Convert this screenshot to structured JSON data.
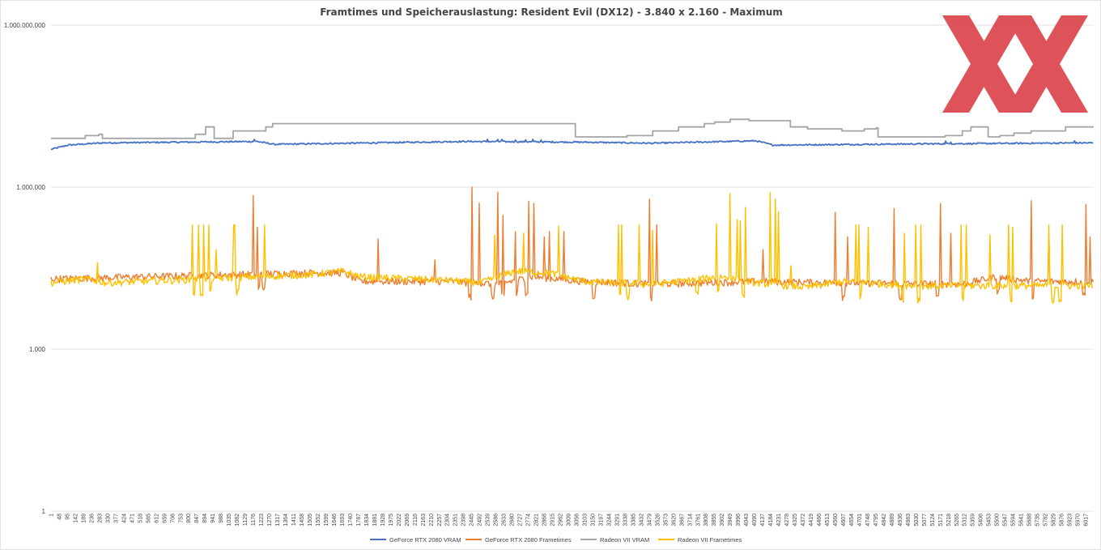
{
  "chart_data": {
    "type": "line",
    "title": "Framtimes und Speicherauslastung: Resident Evil (DX12) - 3.840 x 2.160 - Maximum",
    "xlabel": "",
    "ylabel": "",
    "yscale": "log",
    "ylim": [
      1,
      1000000000
    ],
    "yticks": [
      {
        "value": 1000000000,
        "label": "1.000.000.000"
      },
      {
        "value": 1000000,
        "label": "1.000.000"
      },
      {
        "value": 1000,
        "label": "1.000"
      },
      {
        "value": 1,
        "label": "1"
      }
    ],
    "xlim": [
      1,
      6064
    ],
    "xtick_labels": [
      "1",
      "48",
      "95",
      "142",
      "189",
      "236",
      "283",
      "330",
      "377",
      "424",
      "471",
      "518",
      "565",
      "612",
      "659",
      "706",
      "753",
      "800",
      "847",
      "894",
      "941",
      "988",
      "1035",
      "1082",
      "1129",
      "1176",
      "1223",
      "1270",
      "1317",
      "1364",
      "1411",
      "1458",
      "1505",
      "1552",
      "1599",
      "1646",
      "1693",
      "1740",
      "1787",
      "1834",
      "1881",
      "1928",
      "1975",
      "2022",
      "2069",
      "2116",
      "2163",
      "2210",
      "2257",
      "2304",
      "2351",
      "2398",
      "2445",
      "2492",
      "2539",
      "2586",
      "2633",
      "2680",
      "2727",
      "2774",
      "2821",
      "2868",
      "2915",
      "2962",
      "3009",
      "3056",
      "3103",
      "3150",
      "3197",
      "3244",
      "3291",
      "3338",
      "3385",
      "3432",
      "3479",
      "3526",
      "3573",
      "3620",
      "3667",
      "3714",
      "3761",
      "3808",
      "3855",
      "3902",
      "3949",
      "3996",
      "4043",
      "4090",
      "4137",
      "4184",
      "4231",
      "4278",
      "4325",
      "4372",
      "4419",
      "4466",
      "4513",
      "4560",
      "4607",
      "4654",
      "4701",
      "4748",
      "4795",
      "4842",
      "4889",
      "4936",
      "4983",
      "5030",
      "5077",
      "5124",
      "5171",
      "5218",
      "5265",
      "5312",
      "5359",
      "5406",
      "5453",
      "5500",
      "5547",
      "5594",
      "5641",
      "5688",
      "5735",
      "5782",
      "5829",
      "5876",
      "5923",
      "5970",
      "6017"
    ],
    "grid": true,
    "legend_position": "bottom",
    "series": [
      {
        "name": "GeForce RTX 2080 VRAM",
        "color": "#4472c4",
        "kind": "flat",
        "base": 6500000,
        "noise": 0.03,
        "points": [
          [
            1,
            5000000
          ],
          [
            100,
            6000000
          ],
          [
            300,
            6600000
          ],
          [
            1200,
            7000000
          ],
          [
            1300,
            6200000
          ],
          [
            2400,
            7000000
          ],
          [
            3100,
            6800000
          ],
          [
            3500,
            6500000
          ],
          [
            4100,
            7200000
          ],
          [
            4200,
            6000000
          ],
          [
            5000,
            6300000
          ],
          [
            6064,
            6600000
          ]
        ],
        "spikes": [
          1180,
          2540,
          2600,
          2620,
          2700,
          2760,
          2800,
          2850,
          5200,
          5230,
          5950
        ]
      },
      {
        "name": "GeForce RTX 2080 Frametimes",
        "color": "#ed7d31",
        "kind": "noisy",
        "base": 18000,
        "noise": 0.15,
        "segments": [
          [
            1,
            20000
          ],
          [
            1500,
            26000
          ],
          [
            1700,
            26000
          ],
          [
            1800,
            18000
          ],
          [
            2300,
            18000
          ],
          [
            2600,
            16000
          ],
          [
            2800,
            22000
          ],
          [
            3100,
            18000
          ],
          [
            3500,
            16000
          ],
          [
            4100,
            18000
          ],
          [
            4600,
            17000
          ],
          [
            5300,
            16000
          ],
          [
            5500,
            22000
          ],
          [
            5700,
            18000
          ],
          [
            6064,
            18000
          ]
        ],
        "spikes": [
          [
            1176,
            700000
          ],
          [
            1200,
            180000
          ],
          [
            1900,
            110000
          ],
          [
            2230,
            45000
          ],
          [
            2450,
            1000000
          ],
          [
            2490,
            500000
          ],
          [
            2600,
            800000
          ],
          [
            2630,
            300000
          ],
          [
            2700,
            150000
          ],
          [
            2780,
            550000
          ],
          [
            2810,
            500000
          ],
          [
            2870,
            120000
          ],
          [
            2900,
            150000
          ],
          [
            2980,
            150000
          ],
          [
            3480,
            600000
          ],
          [
            3520,
            200000
          ],
          [
            4140,
            70000
          ],
          [
            4560,
            340000
          ],
          [
            4630,
            120000
          ],
          [
            4900,
            400000
          ],
          [
            5170,
            500000
          ],
          [
            5230,
            140000
          ],
          [
            5700,
            560000
          ],
          [
            5800,
            140000
          ],
          [
            6020,
            480000
          ],
          [
            6040,
            120000
          ]
        ],
        "dips": [
          1200,
          1230,
          2430,
          2560,
          2620,
          2700,
          2760,
          3150,
          3480,
          4600,
          4930,
          5150,
          5500,
          5700,
          6000
        ]
      },
      {
        "name": "Radeon VII VRAM",
        "color": "#a5a5a5",
        "kind": "steps",
        "points": [
          [
            1,
            8000000
          ],
          [
            200,
            9000000
          ],
          [
            280,
            9500000
          ],
          [
            300,
            8000000
          ],
          [
            830,
            8000000
          ],
          [
            840,
            9500000
          ],
          [
            900,
            13000000
          ],
          [
            940,
            13000000
          ],
          [
            950,
            8000000
          ],
          [
            1020,
            8000000
          ],
          [
            1060,
            11000000
          ],
          [
            1230,
            11000000
          ],
          [
            1250,
            13000000
          ],
          [
            1290,
            15000000
          ],
          [
            2060,
            15000000
          ],
          [
            3040,
            15000000
          ],
          [
            3050,
            8500000
          ],
          [
            3300,
            8500000
          ],
          [
            3350,
            9000000
          ],
          [
            3500,
            11000000
          ],
          [
            3650,
            13000000
          ],
          [
            3800,
            15000000
          ],
          [
            3860,
            16000000
          ],
          [
            3950,
            18000000
          ],
          [
            4050,
            18000000
          ],
          [
            4060,
            17000000
          ],
          [
            4250,
            17000000
          ],
          [
            4300,
            13000000
          ],
          [
            4400,
            12000000
          ],
          [
            4600,
            11000000
          ],
          [
            4720,
            11000000
          ],
          [
            4730,
            12000000
          ],
          [
            4800,
            12500000
          ],
          [
            4810,
            8500000
          ],
          [
            5100,
            8500000
          ],
          [
            5200,
            9000000
          ],
          [
            5300,
            11000000
          ],
          [
            5350,
            13000000
          ],
          [
            5400,
            13000000
          ],
          [
            5450,
            8500000
          ],
          [
            5520,
            9000000
          ],
          [
            5600,
            10000000
          ],
          [
            5700,
            11000000
          ],
          [
            5800,
            11000000
          ],
          [
            5900,
            13000000
          ],
          [
            6064,
            13000000
          ]
        ]
      },
      {
        "name": "Radeon VII Frametimes",
        "color": "#ffc000",
        "kind": "noisy",
        "base": 17000,
        "noise": 0.15,
        "segments": [
          [
            1,
            17000
          ],
          [
            200,
            20000
          ],
          [
            320,
            17000
          ],
          [
            1500,
            24000
          ],
          [
            1700,
            28000
          ],
          [
            1800,
            22000
          ],
          [
            2300,
            19000
          ],
          [
            2500,
            17000
          ],
          [
            2700,
            28000
          ],
          [
            2900,
            26000
          ],
          [
            3100,
            18000
          ],
          [
            3500,
            16000
          ],
          [
            3900,
            22000
          ],
          [
            4100,
            17000
          ],
          [
            4400,
            14000
          ],
          [
            4600,
            18000
          ],
          [
            5000,
            15000
          ],
          [
            5500,
            15000
          ],
          [
            5800,
            15000
          ],
          [
            6064,
            15000
          ]
        ],
        "spikes": [
          [
            270,
            40000
          ],
          [
            820,
            200000
          ],
          [
            860,
            200000
          ],
          [
            890,
            200000
          ],
          [
            920,
            200000
          ],
          [
            960,
            70000
          ],
          [
            1060,
            200000
          ],
          [
            1070,
            200000
          ],
          [
            1240,
            200000
          ],
          [
            2580,
            130000
          ],
          [
            2750,
            140000
          ],
          [
            2950,
            190000
          ],
          [
            3300,
            200000
          ],
          [
            3320,
            200000
          ],
          [
            3420,
            200000
          ],
          [
            3500,
            160000
          ],
          [
            3870,
            210000
          ],
          [
            3950,
            760000
          ],
          [
            3990,
            250000
          ],
          [
            4010,
            240000
          ],
          [
            4040,
            420000
          ],
          [
            4180,
            800000
          ],
          [
            4210,
            600000
          ],
          [
            4230,
            350000
          ],
          [
            4300,
            35000
          ],
          [
            4680,
            200000
          ],
          [
            4700,
            200000
          ],
          [
            4750,
            180000
          ],
          [
            4960,
            140000
          ],
          [
            5030,
            200000
          ],
          [
            5060,
            200000
          ],
          [
            5290,
            200000
          ],
          [
            5320,
            200000
          ],
          [
            5460,
            130000
          ],
          [
            5570,
            200000
          ],
          [
            5590,
            180000
          ],
          [
            5800,
            200000
          ],
          [
            5880,
            200000
          ]
        ],
        "dips": [
          820,
          870,
          920,
          1080,
          3300,
          3350,
          3750,
          3870,
          4020,
          4700,
          4950,
          5040,
          5290,
          5580,
          5820,
          5860
        ]
      }
    ]
  }
}
